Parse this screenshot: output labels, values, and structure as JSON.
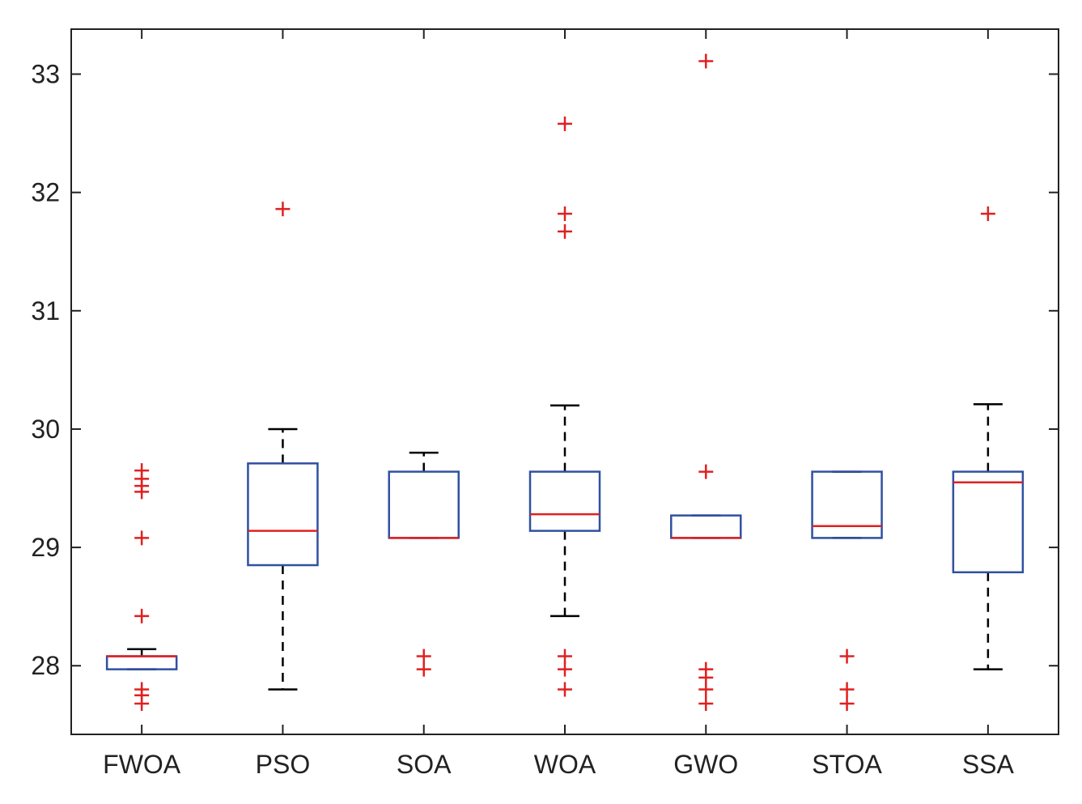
{
  "chart_data": {
    "type": "box",
    "title": "",
    "xlabel": "",
    "ylabel": "",
    "ylim": [
      27.42,
      33.38
    ],
    "yticks": [
      28,
      29,
      30,
      31,
      32,
      33
    ],
    "ytick_labels": [
      "28",
      "29",
      "30",
      "31",
      "32",
      "33"
    ],
    "categories": [
      "FWOA",
      "PSO",
      "SOA",
      "WOA",
      "GWO",
      "STOA",
      "SSA"
    ],
    "boxes": [
      {
        "category": "FWOA",
        "whisker_low": 27.97,
        "q1": 27.97,
        "median": 28.08,
        "q3": 28.08,
        "whisker_high": 28.14,
        "outliers": [
          29.65,
          29.58,
          29.52,
          29.47,
          29.08,
          28.42,
          27.8,
          27.75,
          27.68
        ]
      },
      {
        "category": "PSO",
        "whisker_low": 27.8,
        "q1": 28.85,
        "median": 29.14,
        "q3": 29.71,
        "whisker_high": 30.0,
        "outliers": [
          31.86
        ]
      },
      {
        "category": "SOA",
        "whisker_low": 29.08,
        "q1": 29.08,
        "median": 29.08,
        "q3": 29.64,
        "whisker_high": 29.8,
        "outliers": [
          28.08,
          27.97
        ]
      },
      {
        "category": "WOA",
        "whisker_low": 28.42,
        "q1": 29.14,
        "median": 29.28,
        "q3": 29.64,
        "whisker_high": 30.2,
        "outliers": [
          32.58,
          31.82,
          31.67,
          28.08,
          27.97,
          27.8
        ]
      },
      {
        "category": "GWO",
        "whisker_low": 29.08,
        "q1": 29.08,
        "median": 29.08,
        "q3": 29.27,
        "whisker_high": 29.27,
        "outliers": [
          33.11,
          29.64,
          27.97,
          27.9,
          27.8,
          27.68
        ]
      },
      {
        "category": "STOA",
        "whisker_low": 29.08,
        "q1": 29.08,
        "median": 29.18,
        "q3": 29.64,
        "whisker_high": 29.64,
        "outliers": [
          28.08,
          27.8,
          27.68
        ]
      },
      {
        "category": "SSA",
        "whisker_low": 27.97,
        "q1": 28.79,
        "median": 29.55,
        "q3": 29.64,
        "whisker_high": 30.21,
        "outliers": [
          31.82
        ]
      }
    ],
    "grid": false,
    "legend": "none",
    "colors": {
      "box": "#3050a0",
      "median": "#e02020",
      "whisker": "#000000",
      "outlier": "#e02020",
      "axes": "#222222"
    }
  }
}
